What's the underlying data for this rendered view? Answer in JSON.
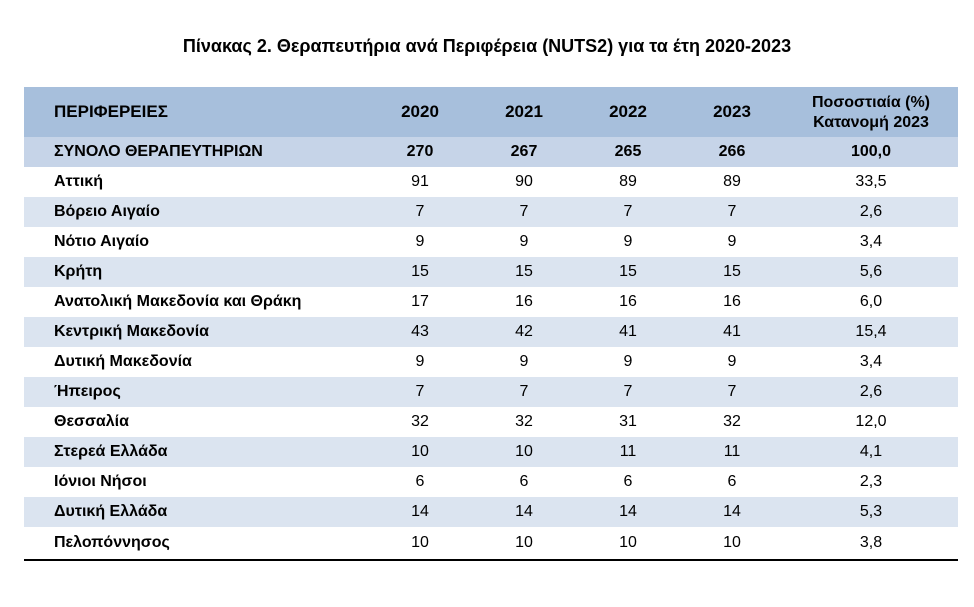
{
  "title": "Πίνακας 2. Θεραπευτήρια ανά Περιφέρεια (NUTS2) για τα έτη 2020-2023",
  "table": {
    "header": {
      "region": "ΠΕΡΙΦΕΡΕΙΕΣ",
      "y2020": "2020",
      "y2021": "2021",
      "y2022": "2022",
      "y2023": "2023",
      "pct_line1": "Ποσοστιαία (%)",
      "pct_line2": "Κατανομή 2023"
    },
    "total": {
      "label": "ΣΥΝΟΛΟ ΘΕΡΑΠΕΥΤΗΡΙΩΝ",
      "y2020": "270",
      "y2021": "267",
      "y2022": "265",
      "y2023": "266",
      "pct": "100,0"
    },
    "rows": [
      {
        "region": "Αττική",
        "y2020": "91",
        "y2021": "90",
        "y2022": "89",
        "y2023": "89",
        "pct": "33,5"
      },
      {
        "region": "Βόρειο Αιγαίο",
        "y2020": "7",
        "y2021": "7",
        "y2022": "7",
        "y2023": "7",
        "pct": "2,6"
      },
      {
        "region": "Νότιο Αιγαίο",
        "y2020": "9",
        "y2021": "9",
        "y2022": "9",
        "y2023": "9",
        "pct": "3,4"
      },
      {
        "region": "Κρήτη",
        "y2020": "15",
        "y2021": "15",
        "y2022": "15",
        "y2023": "15",
        "pct": "5,6"
      },
      {
        "region": "Ανατολική Μακεδονία και Θράκη",
        "y2020": "17",
        "y2021": "16",
        "y2022": "16",
        "y2023": "16",
        "pct": "6,0"
      },
      {
        "region": "Κεντρική Μακεδονία",
        "y2020": "43",
        "y2021": "42",
        "y2022": "41",
        "y2023": "41",
        "pct": "15,4"
      },
      {
        "region": "Δυτική Μακεδονία",
        "y2020": "9",
        "y2021": "9",
        "y2022": "9",
        "y2023": "9",
        "pct": "3,4"
      },
      {
        "region": "Ήπειρος",
        "y2020": "7",
        "y2021": "7",
        "y2022": "7",
        "y2023": "7",
        "pct": "2,6"
      },
      {
        "region": "Θεσσαλία",
        "y2020": "32",
        "y2021": "32",
        "y2022": "31",
        "y2023": "32",
        "pct": "12,0"
      },
      {
        "region": "Στερεά Ελλάδα",
        "y2020": "10",
        "y2021": "10",
        "y2022": "11",
        "y2023": "11",
        "pct": "4,1"
      },
      {
        "region": "Ιόνιοι Νήσοι",
        "y2020": "6",
        "y2021": "6",
        "y2022": "6",
        "y2023": "6",
        "pct": "2,3"
      },
      {
        "region": "Δυτική Ελλάδα",
        "y2020": "14",
        "y2021": "14",
        "y2022": "14",
        "y2023": "14",
        "pct": "5,3"
      },
      {
        "region": "Πελοπόννησος",
        "y2020": "10",
        "y2021": "10",
        "y2022": "10",
        "y2023": "10",
        "pct": "3,8"
      }
    ],
    "colors": {
      "header_bg": "#a7bfdc",
      "total_bg": "#c6d4e8",
      "shaded_row_bg": "#dbe4f0"
    }
  }
}
